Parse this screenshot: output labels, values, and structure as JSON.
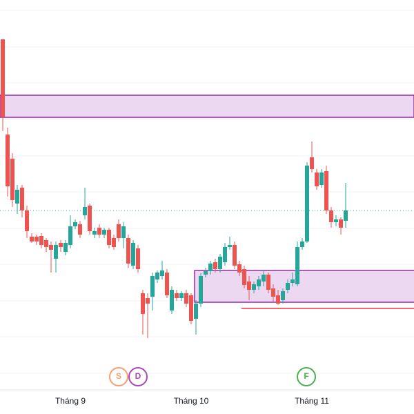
{
  "chart_data": {
    "type": "candlestick",
    "categories": [
      null,
      null,
      null,
      null,
      null,
      null,
      null,
      null,
      null,
      null,
      null,
      null,
      null,
      null,
      "Tháng 9",
      null,
      null,
      null,
      null,
      null,
      null,
      null,
      null,
      null,
      null,
      null,
      null,
      null,
      null,
      null,
      null,
      null,
      null,
      null,
      null,
      null,
      null,
      null,
      null,
      "Tháng 10",
      null,
      null,
      null,
      null,
      null,
      null,
      null,
      null,
      null,
      null,
      null,
      null,
      null,
      null,
      null,
      null,
      null,
      null,
      null,
      null,
      null,
      null,
      null,
      null,
      "Tháng 11",
      null,
      null,
      null,
      null,
      null,
      null,
      null
    ],
    "open": [
      543,
      405,
      370,
      305,
      328,
      295,
      257,
      257,
      258,
      252,
      245,
      225,
      248,
      235,
      245,
      272,
      275,
      288,
      302,
      260,
      270,
      260,
      267,
      255,
      275,
      255,
      255,
      215,
      240,
      175,
      168,
      170,
      195,
      200,
      205,
      150,
      175,
      168,
      175,
      172,
      138,
      160,
      202,
      207,
      220,
      210,
      220,
      242,
      245,
      217,
      210,
      192,
      180,
      185,
      192,
      202,
      182,
      172,
      165,
      180,
      190,
      188,
      242,
      250,
      372,
      350,
      332,
      352,
      295,
      278,
      282,
      280
    ],
    "high": [
      543,
      415,
      378,
      332,
      332,
      302,
      262,
      260,
      262,
      255,
      250,
      250,
      252,
      252,
      288,
      282,
      280,
      328,
      305,
      270,
      275,
      270,
      270,
      260,
      282,
      278,
      260,
      252,
      245,
      180,
      175,
      205,
      208,
      222,
      210,
      185,
      180,
      178,
      180,
      175,
      165,
      204,
      212,
      222,
      225,
      232,
      248,
      257,
      250,
      222,
      215,
      200,
      192,
      200,
      208,
      205,
      188,
      180,
      182,
      195,
      205,
      250,
      255,
      365,
      395,
      355,
      355,
      360,
      300,
      288,
      285,
      335
    ],
    "low": [
      410,
      315,
      300,
      290,
      285,
      255,
      248,
      245,
      240,
      235,
      205,
      205,
      235,
      230,
      240,
      268,
      255,
      282,
      260,
      255,
      255,
      255,
      240,
      238,
      250,
      240,
      212,
      210,
      205,
      115,
      110,
      150,
      190,
      195,
      168,
      145,
      164,
      164,
      155,
      130,
      115,
      155,
      198,
      202,
      205,
      205,
      215,
      238,
      210,
      200,
      182,
      165,
      175,
      180,
      185,
      175,
      162,
      158,
      160,
      175,
      185,
      185,
      238,
      248,
      350,
      325,
      328,
      290,
      270,
      272,
      260,
      270
    ],
    "close": [
      430,
      330,
      310,
      325,
      295,
      265,
      250,
      250,
      245,
      242,
      238,
      245,
      242,
      248,
      272,
      278,
      260,
      300,
      265,
      265,
      260,
      267,
      245,
      242,
      255,
      272,
      218,
      248,
      210,
      145,
      160,
      200,
      205,
      208,
      172,
      180,
      168,
      175,
      160,
      135,
      160,
      200,
      207,
      218,
      210,
      228,
      242,
      245,
      215,
      205,
      187,
      180,
      188,
      195,
      202,
      180,
      170,
      160,
      178,
      190,
      195,
      242,
      250,
      360,
      355,
      330,
      350,
      295,
      278,
      282,
      270,
      295
    ],
    "up_color": "#26a69a",
    "down_color": "#ef5350",
    "ylim": [
      0,
      600
    ],
    "events": [
      {
        "label": "S",
        "color": "#f7a072"
      },
      {
        "label": "D",
        "color": "#ab47bc"
      },
      {
        "label": "F",
        "color": "#4caf50"
      }
    ]
  }
}
